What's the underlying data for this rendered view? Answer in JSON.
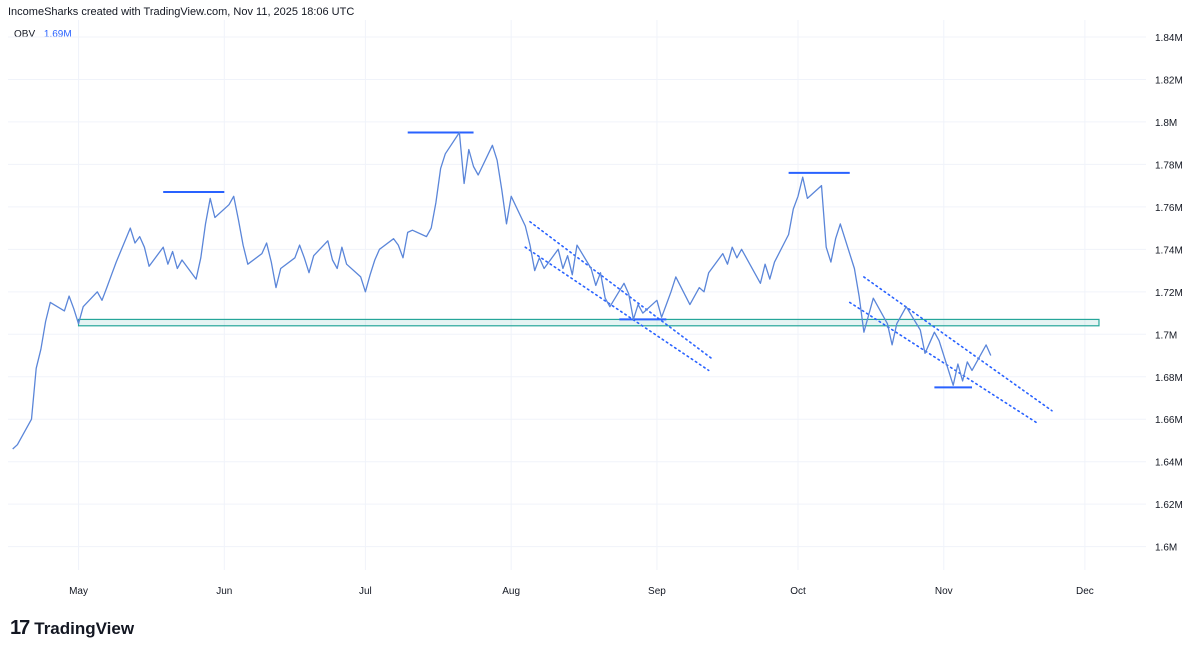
{
  "header": {
    "text": "IncomeSharks created with TradingView.com, Nov 11, 2025 18:06 UTC"
  },
  "indicator": {
    "name": "OBV",
    "value": "1.69M",
    "color": "#2962ff"
  },
  "brand": {
    "mark": "17",
    "name": "TradingView"
  },
  "colors": {
    "line": "#5b86d9",
    "annotation": "#2962ff",
    "zone": "#26a69a",
    "grid": "#f0f3fa"
  },
  "chart_data": {
    "type": "line",
    "series": [
      {
        "name": "OBV",
        "unit": "M",
        "points": [
          [
            "2025-04-17",
            1.646
          ],
          [
            "2025-04-18",
            1.648
          ],
          [
            "2025-04-21",
            1.66
          ],
          [
            "2025-04-22",
            1.684
          ],
          [
            "2025-04-23",
            1.693
          ],
          [
            "2025-04-24",
            1.706
          ],
          [
            "2025-04-25",
            1.715
          ],
          [
            "2025-04-28",
            1.711
          ],
          [
            "2025-04-29",
            1.718
          ],
          [
            "2025-04-30",
            1.712
          ],
          [
            "2025-05-01",
            1.705
          ],
          [
            "2025-05-02",
            1.713
          ],
          [
            "2025-05-05",
            1.72
          ],
          [
            "2025-05-06",
            1.716
          ],
          [
            "2025-05-07",
            1.722
          ],
          [
            "2025-05-08",
            1.728
          ],
          [
            "2025-05-09",
            1.734
          ],
          [
            "2025-05-12",
            1.75
          ],
          [
            "2025-05-13",
            1.743
          ],
          [
            "2025-05-14",
            1.746
          ],
          [
            "2025-05-15",
            1.741
          ],
          [
            "2025-05-16",
            1.732
          ],
          [
            "2025-05-19",
            1.741
          ],
          [
            "2025-05-20",
            1.733
          ],
          [
            "2025-05-21",
            1.739
          ],
          [
            "2025-05-22",
            1.731
          ],
          [
            "2025-05-23",
            1.735
          ],
          [
            "2025-05-26",
            1.726
          ],
          [
            "2025-05-27",
            1.736
          ],
          [
            "2025-05-28",
            1.752
          ],
          [
            "2025-05-29",
            1.764
          ],
          [
            "2025-05-30",
            1.755
          ],
          [
            "2025-06-02",
            1.761
          ],
          [
            "2025-06-03",
            1.765
          ],
          [
            "2025-06-04",
            1.754
          ],
          [
            "2025-06-05",
            1.742
          ],
          [
            "2025-06-06",
            1.733
          ],
          [
            "2025-06-09",
            1.738
          ],
          [
            "2025-06-10",
            1.743
          ],
          [
            "2025-06-11",
            1.734
          ],
          [
            "2025-06-12",
            1.722
          ],
          [
            "2025-06-13",
            1.731
          ],
          [
            "2025-06-16",
            1.736
          ],
          [
            "2025-06-17",
            1.742
          ],
          [
            "2025-06-18",
            1.736
          ],
          [
            "2025-06-19",
            1.729
          ],
          [
            "2025-06-20",
            1.737
          ],
          [
            "2025-06-23",
            1.744
          ],
          [
            "2025-06-24",
            1.735
          ],
          [
            "2025-06-25",
            1.731
          ],
          [
            "2025-06-26",
            1.741
          ],
          [
            "2025-06-27",
            1.733
          ],
          [
            "2025-06-30",
            1.727
          ],
          [
            "2025-07-01",
            1.72
          ],
          [
            "2025-07-02",
            1.728
          ],
          [
            "2025-07-03",
            1.735
          ],
          [
            "2025-07-04",
            1.74
          ],
          [
            "2025-07-07",
            1.745
          ],
          [
            "2025-07-08",
            1.742
          ],
          [
            "2025-07-09",
            1.736
          ],
          [
            "2025-07-10",
            1.748
          ],
          [
            "2025-07-11",
            1.749
          ],
          [
            "2025-07-14",
            1.746
          ],
          [
            "2025-07-15",
            1.75
          ],
          [
            "2025-07-16",
            1.762
          ],
          [
            "2025-07-17",
            1.778
          ],
          [
            "2025-07-18",
            1.785
          ],
          [
            "2025-07-21",
            1.795
          ],
          [
            "2025-07-22",
            1.771
          ],
          [
            "2025-07-23",
            1.787
          ],
          [
            "2025-07-24",
            1.779
          ],
          [
            "2025-07-25",
            1.775
          ],
          [
            "2025-07-28",
            1.789
          ],
          [
            "2025-07-29",
            1.782
          ],
          [
            "2025-07-30",
            1.768
          ],
          [
            "2025-07-31",
            1.752
          ],
          [
            "2025-08-01",
            1.765
          ],
          [
            "2025-08-04",
            1.751
          ],
          [
            "2025-08-05",
            1.742
          ],
          [
            "2025-08-06",
            1.73
          ],
          [
            "2025-08-07",
            1.736
          ],
          [
            "2025-08-08",
            1.731
          ],
          [
            "2025-08-11",
            1.74
          ],
          [
            "2025-08-12",
            1.731
          ],
          [
            "2025-08-13",
            1.737
          ],
          [
            "2025-08-14",
            1.728
          ],
          [
            "2025-08-15",
            1.742
          ],
          [
            "2025-08-18",
            1.731
          ],
          [
            "2025-08-19",
            1.723
          ],
          [
            "2025-08-20",
            1.729
          ],
          [
            "2025-08-21",
            1.717
          ],
          [
            "2025-08-22",
            1.713
          ],
          [
            "2025-08-25",
            1.724
          ],
          [
            "2025-08-26",
            1.719
          ],
          [
            "2025-08-27",
            1.707
          ],
          [
            "2025-08-28",
            1.714
          ],
          [
            "2025-08-29",
            1.71
          ],
          [
            "2025-09-01",
            1.716
          ],
          [
            "2025-09-02",
            1.708
          ],
          [
            "2025-09-03",
            1.714
          ],
          [
            "2025-09-04",
            1.72
          ],
          [
            "2025-09-05",
            1.727
          ],
          [
            "2025-09-08",
            1.714
          ],
          [
            "2025-09-09",
            1.718
          ],
          [
            "2025-09-10",
            1.722
          ],
          [
            "2025-09-11",
            1.72
          ],
          [
            "2025-09-12",
            1.729
          ],
          [
            "2025-09-15",
            1.738
          ],
          [
            "2025-09-16",
            1.733
          ],
          [
            "2025-09-17",
            1.741
          ],
          [
            "2025-09-18",
            1.736
          ],
          [
            "2025-09-19",
            1.74
          ],
          [
            "2025-09-22",
            1.728
          ],
          [
            "2025-09-23",
            1.724
          ],
          [
            "2025-09-24",
            1.733
          ],
          [
            "2025-09-25",
            1.726
          ],
          [
            "2025-09-26",
            1.734
          ],
          [
            "2025-09-29",
            1.747
          ],
          [
            "2025-09-30",
            1.759
          ],
          [
            "2025-10-01",
            1.765
          ],
          [
            "2025-10-02",
            1.774
          ],
          [
            "2025-10-03",
            1.764
          ],
          [
            "2025-10-06",
            1.77
          ],
          [
            "2025-10-07",
            1.741
          ],
          [
            "2025-10-08",
            1.734
          ],
          [
            "2025-10-09",
            1.745
          ],
          [
            "2025-10-10",
            1.752
          ],
          [
            "2025-10-13",
            1.731
          ],
          [
            "2025-10-14",
            1.718
          ],
          [
            "2025-10-15",
            1.701
          ],
          [
            "2025-10-16",
            1.709
          ],
          [
            "2025-10-17",
            1.717
          ],
          [
            "2025-10-20",
            1.705
          ],
          [
            "2025-10-21",
            1.695
          ],
          [
            "2025-10-22",
            1.705
          ],
          [
            "2025-10-23",
            1.709
          ],
          [
            "2025-10-24",
            1.713
          ],
          [
            "2025-10-27",
            1.702
          ],
          [
            "2025-10-28",
            1.691
          ],
          [
            "2025-10-29",
            1.696
          ],
          [
            "2025-10-30",
            1.701
          ],
          [
            "2025-10-31",
            1.697
          ],
          [
            "2025-11-03",
            1.676
          ],
          [
            "2025-11-04",
            1.686
          ],
          [
            "2025-11-05",
            1.678
          ],
          [
            "2025-11-06",
            1.687
          ],
          [
            "2025-11-07",
            1.683
          ],
          [
            "2025-11-10",
            1.695
          ],
          [
            "2025-11-11",
            1.69
          ]
        ]
      }
    ],
    "y_ticks": [
      1.6,
      1.62,
      1.64,
      1.66,
      1.68,
      1.7,
      1.72,
      1.74,
      1.76,
      1.78,
      1.8,
      1.82,
      1.84
    ],
    "y_tick_labels": [
      "1.6M",
      "1.62M",
      "1.64M",
      "1.66M",
      "1.68M",
      "1.7M",
      "1.72M",
      "1.74M",
      "1.76M",
      "1.78M",
      "1.8M",
      "1.82M",
      "1.84M"
    ],
    "ylim": [
      1.589,
      1.848
    ],
    "xlim": [
      "2025-04-16",
      "2025-12-14"
    ],
    "x_ticks": [
      "2025-05-01",
      "2025-06-01",
      "2025-07-01",
      "2025-08-01",
      "2025-09-01",
      "2025-10-01",
      "2025-11-01",
      "2025-12-01"
    ],
    "x_tick_labels": [
      "May",
      "Jun",
      "Jul",
      "Aug",
      "Sep",
      "Oct",
      "Nov",
      "Dec"
    ],
    "grid": true,
    "annotations": {
      "zone": {
        "from": [
          "2025-05-01",
          1.704
        ],
        "to": [
          "2025-12-04",
          1.707
        ]
      },
      "levels": [
        {
          "from": [
            "2025-05-19",
            1.767
          ],
          "to": [
            "2025-06-01",
            1.767
          ]
        },
        {
          "from": [
            "2025-07-10",
            1.795
          ],
          "to": [
            "2025-07-24",
            1.795
          ]
        },
        {
          "from": [
            "2025-08-24",
            1.707
          ],
          "to": [
            "2025-09-03",
            1.707
          ]
        },
        {
          "from": [
            "2025-09-29",
            1.776
          ],
          "to": [
            "2025-10-12",
            1.776
          ]
        },
        {
          "from": [
            "2025-10-30",
            1.675
          ],
          "to": [
            "2025-11-07",
            1.675
          ]
        }
      ],
      "channels": [
        {
          "from": [
            "2025-08-05",
            1.753
          ],
          "to": [
            "2025-09-13",
            1.688
          ]
        },
        {
          "from": [
            "2025-08-04",
            1.741
          ],
          "to": [
            "2025-09-12",
            1.683
          ]
        },
        {
          "from": [
            "2025-10-15",
            1.727
          ],
          "to": [
            "2025-11-24",
            1.664
          ]
        },
        {
          "from": [
            "2025-10-12",
            1.715
          ],
          "to": [
            "2025-11-21",
            1.658
          ]
        }
      ]
    }
  }
}
